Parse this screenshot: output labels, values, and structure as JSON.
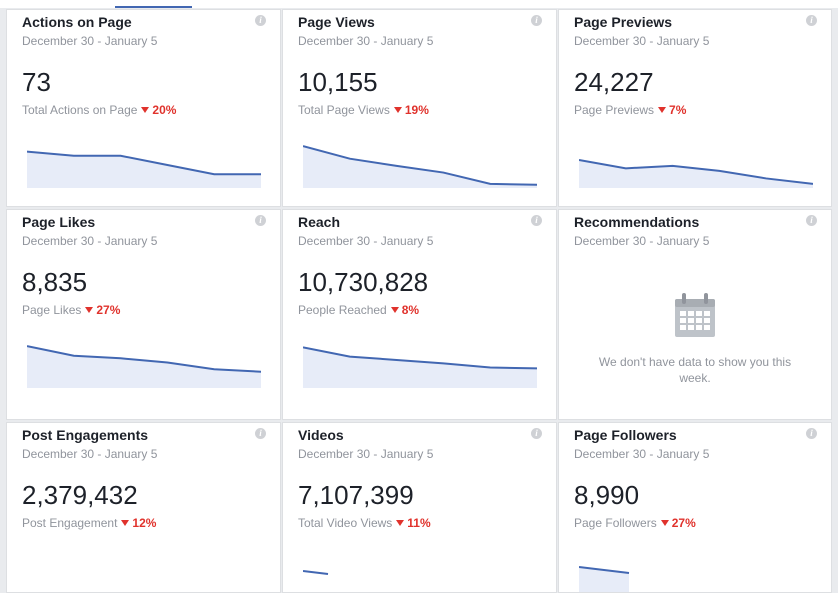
{
  "cards": [
    {
      "title": "Actions on Page",
      "date_range": "December 30 - January 5",
      "value": "73",
      "label": "Total Actions on Page",
      "change": "20%",
      "trend": [
        0.82,
        0.72,
        0.72,
        0.5,
        0.28,
        0.28
      ]
    },
    {
      "title": "Page Views",
      "date_range": "December 30 - January 5",
      "value": "10,155",
      "label": "Total Page Views",
      "change": "19%",
      "trend": [
        0.95,
        0.65,
        0.48,
        0.32,
        0.05,
        0.03
      ]
    },
    {
      "title": "Page Previews",
      "date_range": "December 30 - January 5",
      "value": "24,227",
      "label": "Page Previews",
      "change": "7%",
      "trend": [
        0.62,
        0.42,
        0.48,
        0.36,
        0.18,
        0.05
      ]
    },
    {
      "title": "Page Likes",
      "date_range": "December 30 - January 5",
      "value": "8,835",
      "label": "Page Likes",
      "change": "27%",
      "trend": [
        0.95,
        0.72,
        0.66,
        0.56,
        0.4,
        0.34
      ]
    },
    {
      "title": "Reach",
      "date_range": "December 30 - January 5",
      "value": "10,730,828",
      "label": "People Reached",
      "change": "8%",
      "trend": [
        0.92,
        0.7,
        0.62,
        0.54,
        0.44,
        0.42
      ]
    },
    {
      "title": "Recommendations",
      "date_range": "December 30 - January 5",
      "empty_message": "We don't have data to show you this week."
    },
    {
      "title": "Post Engagements",
      "date_range": "December 30 - January 5",
      "value": "2,379,432",
      "label": "Post Engagement",
      "change": "12%",
      "trend": null
    },
    {
      "title": "Videos",
      "date_range": "December 30 - January 5",
      "value": "7,107,399",
      "label": "Total Video Views",
      "change": "11%",
      "trend": null
    },
    {
      "title": "Page Followers",
      "date_range": "December 30 - January 5",
      "value": "8,990",
      "label": "Page Followers",
      "change": "27%",
      "trend": null
    }
  ],
  "colors": {
    "accent": "#4267b2",
    "decrease": "#e0322c",
    "sparkline_fill": "#e7ecf8"
  },
  "icons": {
    "info": "info-icon",
    "decrease": "down-arrow-icon",
    "empty_state": "calendar-icon"
  }
}
